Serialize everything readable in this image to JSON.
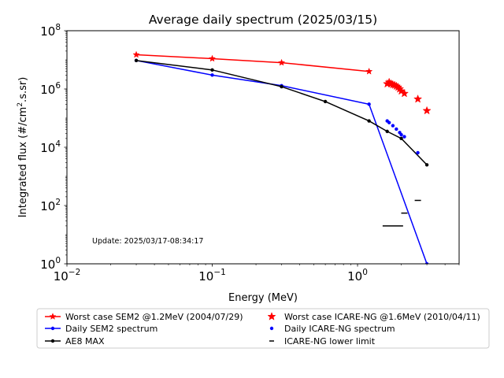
{
  "chart_data": {
    "type": "line",
    "title": "Average daily spectrum (2025/03/15)",
    "xlabel": "Energy (MeV)",
    "ylabel_main": "Integrated flux (#/cm",
    "ylabel_sup": "2",
    "ylabel_tail": ".s.sr)",
    "x_scale": "log",
    "y_scale": "log",
    "xlim": [
      0.01,
      5
    ],
    "ylim": [
      1,
      100000000
    ],
    "grid": false,
    "legend_position": "below",
    "x_ticks": [
      {
        "value": 0.01,
        "base": "10",
        "exp": "−2"
      },
      {
        "value": 0.1,
        "base": "10",
        "exp": "−1"
      },
      {
        "value": 1,
        "base": "10",
        "exp": "0"
      }
    ],
    "y_ticks": [
      {
        "value": 1,
        "base": "10",
        "exp": "0"
      },
      {
        "value": 100,
        "base": "10",
        "exp": "2"
      },
      {
        "value": 10000,
        "base": "10",
        "exp": "4"
      },
      {
        "value": 1000000,
        "base": "10",
        "exp": "6"
      },
      {
        "value": 100000000,
        "base": "10",
        "exp": "8"
      }
    ],
    "annotation": "Update: 2025/03/17-08:34:17",
    "series": [
      {
        "name": "Worst case SEM2 @1.2MeV (2004/07/29)",
        "color": "#ff0000",
        "marker": "star",
        "style": "line",
        "points": [
          [
            0.03,
            15000000
          ],
          [
            0.1,
            11000000
          ],
          [
            0.3,
            8000000
          ],
          [
            1.2,
            4000000
          ]
        ]
      },
      {
        "name": "Daily SEM2 spectrum",
        "color": "#0000ff",
        "marker": "dot",
        "style": "line",
        "points": [
          [
            0.03,
            9500000
          ],
          [
            0.1,
            3000000
          ],
          [
            0.3,
            1300000
          ],
          [
            1.2,
            300000
          ],
          [
            3.0,
            1
          ]
        ]
      },
      {
        "name": "AE8 MAX",
        "color": "#000000",
        "marker": "dot",
        "style": "line",
        "points": [
          [
            0.03,
            9500000
          ],
          [
            0.1,
            4500000
          ],
          [
            0.3,
            1200000
          ],
          [
            0.6,
            370000
          ],
          [
            1.2,
            80000
          ],
          [
            1.6,
            35000
          ],
          [
            2.0,
            20000
          ],
          [
            3.0,
            2500
          ]
        ]
      },
      {
        "name": "Worst case ICARE-NG @1.6MeV (2010/04/11)",
        "color": "#ff0000",
        "marker": "star",
        "style": "scatter",
        "points": [
          [
            1.6,
            1500000
          ],
          [
            1.65,
            1700000
          ],
          [
            1.7,
            1500000
          ],
          [
            1.75,
            1400000
          ],
          [
            1.8,
            1350000
          ],
          [
            1.85,
            1250000
          ],
          [
            1.9,
            1150000
          ],
          [
            1.95,
            1000000
          ],
          [
            2.0,
            850000
          ],
          [
            2.1,
            700000
          ],
          [
            2.6,
            450000
          ],
          [
            3.0,
            180000
          ]
        ]
      },
      {
        "name": "Daily ICARE-NG spectrum",
        "color": "#0000ff",
        "marker": "dot",
        "style": "scatter",
        "points": [
          [
            1.6,
            80000
          ],
          [
            1.65,
            70000
          ],
          [
            1.75,
            55000
          ],
          [
            1.85,
            42000
          ],
          [
            1.95,
            32000
          ],
          [
            2.0,
            27000
          ],
          [
            2.1,
            23000
          ],
          [
            2.6,
            6500
          ]
        ]
      },
      {
        "name": "ICARE-NG lower limit",
        "color": "#000000",
        "marker": "hline",
        "style": "scatter",
        "points": [
          [
            1.75,
            20
          ],
          [
            2.1,
            55
          ],
          [
            2.6,
            150
          ]
        ]
      }
    ]
  }
}
